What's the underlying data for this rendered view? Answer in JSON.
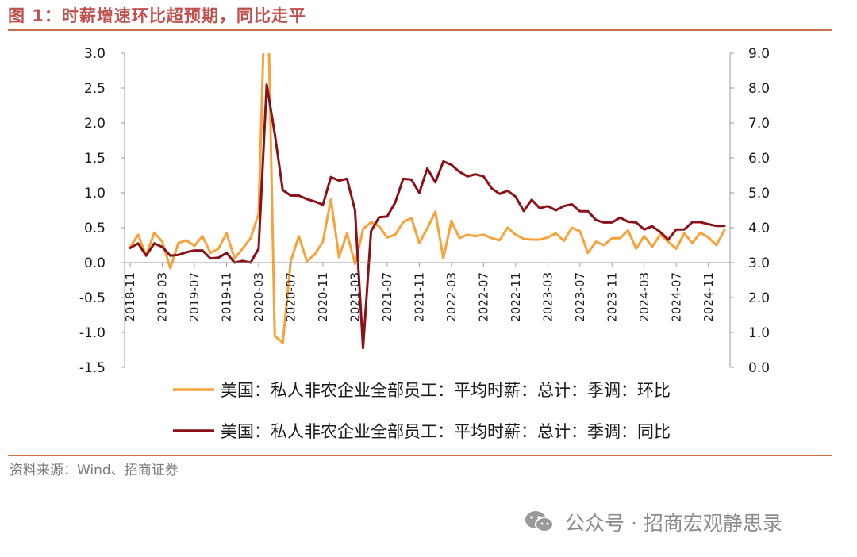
{
  "header": {
    "title": "图 1：时薪增速环比超预期，同比走平"
  },
  "footer": {
    "source": "资料来源：Wind、招商证券",
    "watermark_text": "公众号 · 招商宏观静思录",
    "watermark_icon": "wechat-icon"
  },
  "chart_data": {
    "type": "line",
    "title": "时薪增速环比超预期，同比走平",
    "x": [
      "2018-11",
      "2018-12",
      "2019-01",
      "2019-02",
      "2019-03",
      "2019-04",
      "2019-05",
      "2019-06",
      "2019-07",
      "2019-08",
      "2019-09",
      "2019-10",
      "2019-11",
      "2019-12",
      "2020-01",
      "2020-02",
      "2020-03",
      "2020-04",
      "2020-05",
      "2020-06",
      "2020-07",
      "2020-08",
      "2020-09",
      "2020-10",
      "2020-11",
      "2020-12",
      "2021-01",
      "2021-02",
      "2021-03",
      "2021-04",
      "2021-05",
      "2021-06",
      "2021-07",
      "2021-08",
      "2021-09",
      "2021-10",
      "2021-11",
      "2021-12",
      "2022-01",
      "2022-02",
      "2022-03",
      "2022-04",
      "2022-05",
      "2022-06",
      "2022-07",
      "2022-08",
      "2022-09",
      "2022-10",
      "2022-11",
      "2022-12",
      "2023-01",
      "2023-02",
      "2023-03",
      "2023-04",
      "2023-05",
      "2023-06",
      "2023-07",
      "2023-08",
      "2023-09",
      "2023-10",
      "2023-11",
      "2023-12",
      "2024-01",
      "2024-02",
      "2024-03",
      "2024-04",
      "2024-05",
      "2024-06",
      "2024-07",
      "2024-08",
      "2024-09",
      "2024-10",
      "2024-11",
      "2024-12",
      "2025-01"
    ],
    "x_tick_labels": [
      "2018-11",
      "2019-03",
      "2019-07",
      "2019-11",
      "2020-03",
      "2020-07",
      "2020-11",
      "2021-03",
      "2021-07",
      "2021-11",
      "2022-03",
      "2022-07",
      "2022-11",
      "2023-03",
      "2023-07",
      "2023-11",
      "2024-03",
      "2024-07",
      "2024-11"
    ],
    "series": [
      {
        "name": "美国：私人非农企业全部员工：平均时薪：总计：季调：环比",
        "axis": "left",
        "color": "#f7a23a",
        "values": [
          0.22,
          0.4,
          0.1,
          0.43,
          0.3,
          -0.08,
          0.28,
          0.32,
          0.24,
          0.38,
          0.14,
          0.2,
          0.42,
          0.06,
          0.2,
          0.35,
          0.7,
          4.7,
          -1.05,
          -1.15,
          0.02,
          0.38,
          0.02,
          0.12,
          0.3,
          0.91,
          0.08,
          0.42,
          -0.02,
          0.48,
          0.58,
          0.52,
          0.36,
          0.4,
          0.58,
          0.64,
          0.28,
          0.49,
          0.73,
          0.06,
          0.6,
          0.35,
          0.4,
          0.38,
          0.4,
          0.35,
          0.32,
          0.5,
          0.4,
          0.34,
          0.33,
          0.33,
          0.36,
          0.42,
          0.31,
          0.5,
          0.45,
          0.14,
          0.3,
          0.25,
          0.35,
          0.35,
          0.46,
          0.2,
          0.38,
          0.23,
          0.4,
          0.3,
          0.2,
          0.42,
          0.28,
          0.43,
          0.36,
          0.25,
          0.47
        ]
      },
      {
        "name": "美国：私人非农企业全部员工：平均时薪：总计：季调：同比",
        "axis": "right",
        "color": "#8b1017",
        "values": [
          3.42,
          3.55,
          3.2,
          3.55,
          3.45,
          3.2,
          3.22,
          3.3,
          3.35,
          3.35,
          3.12,
          3.14,
          3.28,
          3.0,
          3.05,
          3.0,
          3.4,
          8.1,
          6.7,
          5.08,
          4.92,
          4.92,
          4.82,
          4.75,
          4.66,
          5.45,
          5.35,
          5.4,
          4.5,
          0.55,
          3.9,
          4.3,
          4.32,
          4.72,
          5.4,
          5.38,
          5.0,
          5.7,
          5.3,
          5.9,
          5.8,
          5.6,
          5.47,
          5.53,
          5.47,
          5.13,
          4.97,
          5.06,
          4.89,
          4.48,
          4.8,
          4.56,
          4.62,
          4.5,
          4.62,
          4.67,
          4.47,
          4.47,
          4.22,
          4.15,
          4.15,
          4.29,
          4.17,
          4.15,
          3.95,
          4.04,
          3.88,
          3.66,
          3.95,
          3.95,
          4.16,
          4.16,
          4.1,
          4.05,
          4.05
        ]
      }
    ],
    "y_left": {
      "min": -1.5,
      "max": 3.0,
      "step": 0.5,
      "ticks": [
        "3.0",
        "2.5",
        "2.0",
        "1.5",
        "1.0",
        "0.5",
        "0.0",
        "-0.5",
        "-1.0",
        "-1.5"
      ]
    },
    "y_right": {
      "min": 0.0,
      "max": 9.0,
      "step": 1.0,
      "ticks": [
        "9.0",
        "8.0",
        "7.0",
        "6.0",
        "5.0",
        "4.0",
        "3.0",
        "2.0",
        "1.0",
        "0.0"
      ]
    },
    "legend_position": "bottom",
    "grid": false
  }
}
